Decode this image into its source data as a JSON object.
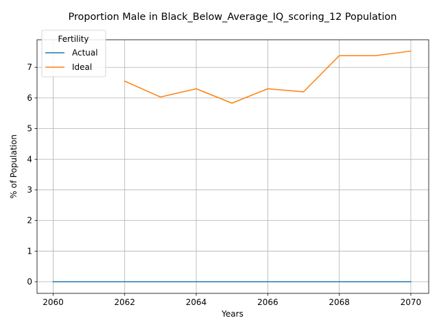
{
  "chart_data": {
    "type": "line",
    "title": "Proportion Male in Black_Below_Average_IQ_scoring_12 Population",
    "xlabel": "Years",
    "ylabel": "% of Population",
    "xlim": [
      2059.55,
      2070.5
    ],
    "ylim": [
      -0.38,
      7.9
    ],
    "xticks": [
      2060,
      2062,
      2064,
      2066,
      2068,
      2070
    ],
    "yticks": [
      0,
      1,
      2,
      3,
      4,
      5,
      6,
      7
    ],
    "grid": true,
    "legend": {
      "title": "Fertility",
      "placement": "top-left"
    },
    "series": [
      {
        "name": "Actual",
        "color": "#1f77b4",
        "x": [
          2060,
          2061,
          2062,
          2063,
          2064,
          2065,
          2066,
          2067,
          2068,
          2069,
          2070
        ],
        "values": [
          0,
          0,
          0,
          0,
          0,
          0,
          0,
          0,
          0,
          0,
          0
        ]
      },
      {
        "name": "Ideal",
        "color": "#ff7f0e",
        "x": [
          2060,
          2061,
          2062,
          2063,
          2064,
          2065,
          2066,
          2067,
          2068,
          2069,
          2070
        ],
        "values": [
          null,
          null,
          6.55,
          6.03,
          6.3,
          5.83,
          6.3,
          6.2,
          7.38,
          7.38,
          7.53
        ]
      }
    ]
  }
}
